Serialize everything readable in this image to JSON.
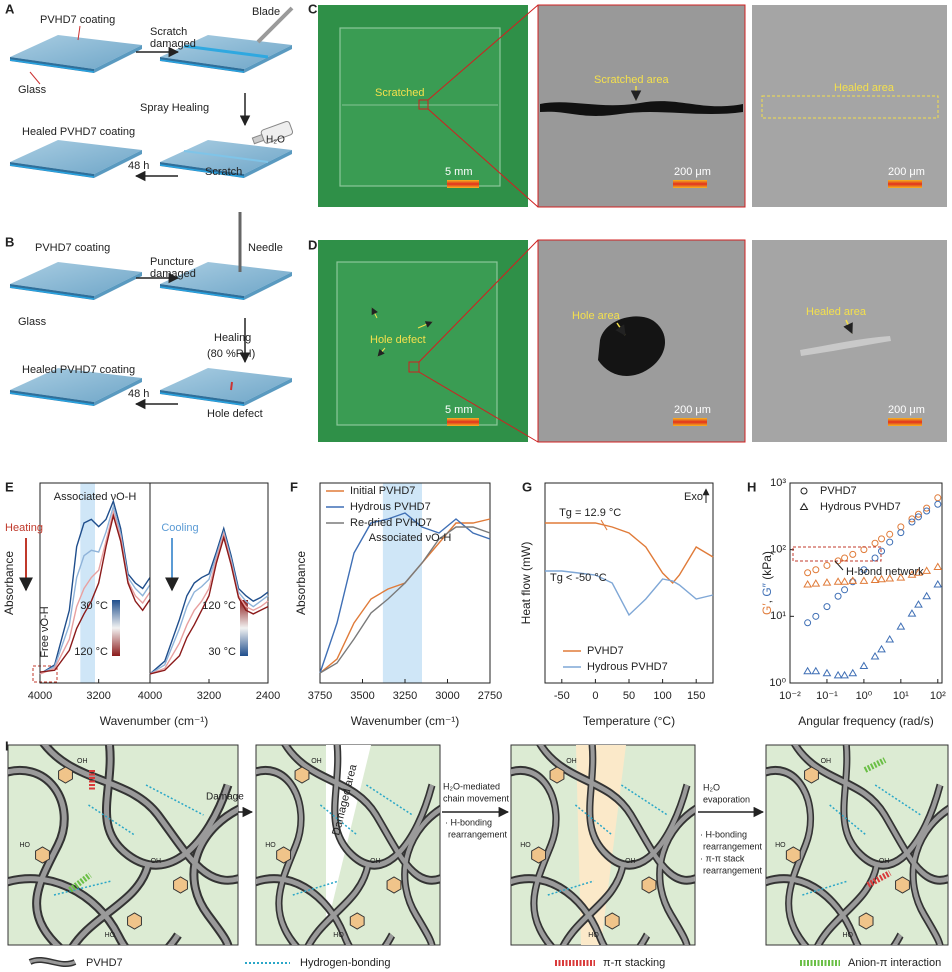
{
  "panel_a": {
    "label": "A",
    "coating": "PVHD7 coating",
    "glass": "Glass",
    "step1": [
      "Scratch",
      "damaged"
    ],
    "blade": "Blade",
    "step2": "Spray Healing",
    "water": "H₂O",
    "healed": "Healed PVHD7 coating",
    "time": "48 h",
    "scratch": "Scratch"
  },
  "panel_b": {
    "label": "B",
    "coating": "PVHD7 coating",
    "glass": "Glass",
    "step1": [
      "Puncture",
      "damaged"
    ],
    "needle": "Needle",
    "step2": [
      "Healing",
      "(80 %RH)"
    ],
    "healed": "Healed PVHD7 coating",
    "time": "48 h",
    "defect": "Hole defect"
  },
  "panel_c": {
    "label": "C",
    "photo_label": "Scratched",
    "photo_scale": "5 mm",
    "damaged_label": "Scratched area",
    "damaged_scale": "200 μm",
    "healed_label": "Healed area",
    "healed_scale": "200 μm"
  },
  "panel_d": {
    "label": "D",
    "photo_label": "Hole defect",
    "photo_scale": "5 mm",
    "damaged_label": "Hole area",
    "damaged_scale": "200 μm",
    "healed_label": "Healed area",
    "healed_scale": "200 μm"
  },
  "chart_data": [
    {
      "type": "line",
      "label": "E",
      "x_label": "Wavenumber (cm⁻¹)",
      "y_label": "Absorbance",
      "annotations": {
        "associated": "Associated νO-H",
        "heating": "Heating",
        "cooling": "Cooling",
        "free": "Free νO-H"
      },
      "subplots": [
        {
          "xlim": [
            4000,
            2500
          ],
          "xticks": [
            4000,
            3200
          ],
          "ylim": [
            0,
            1.1
          ],
          "highlight": [
            3450,
            3250
          ],
          "colorbar": [
            "30 °C",
            "120 °C"
          ],
          "x": [
            4000,
            3800,
            3600,
            3500,
            3400,
            3300,
            3200,
            3100,
            3000,
            2900,
            2800,
            2700,
            2600,
            2500
          ],
          "series": [
            {
              "color": "#1f4e8c",
              "values": [
                0.05,
                0.1,
                0.4,
                0.75,
                0.88,
                0.9,
                0.86,
                0.9,
                1.0,
                0.85,
                0.6,
                0.55,
                0.52,
                0.58
              ]
            },
            {
              "color": "#8fb3d9",
              "values": [
                0.05,
                0.09,
                0.32,
                0.58,
                0.7,
                0.73,
                0.72,
                0.83,
                0.97,
                0.82,
                0.58,
                0.52,
                0.48,
                0.54
              ]
            },
            {
              "color": "#e8a0a0",
              "values": [
                0.05,
                0.08,
                0.24,
                0.42,
                0.52,
                0.58,
                0.62,
                0.78,
                0.94,
                0.8,
                0.56,
                0.48,
                0.44,
                0.5
              ]
            },
            {
              "color": "#8b1a1a",
              "values": [
                0.06,
                0.07,
                0.18,
                0.3,
                0.38,
                0.45,
                0.55,
                0.75,
                0.92,
                0.78,
                0.55,
                0.45,
                0.4,
                0.46
              ]
            }
          ]
        },
        {
          "xlim": [
            4000,
            2400
          ],
          "xticks": [
            4000,
            3200,
            2400
          ],
          "ylim": [
            0,
            1.1
          ],
          "colorbar": [
            "120 °C",
            "30 °C"
          ],
          "x": [
            4000,
            3800,
            3600,
            3500,
            3400,
            3300,
            3200,
            3100,
            3000,
            2900,
            2800,
            2700,
            2600,
            2500,
            2400
          ],
          "series": [
            {
              "color": "#1f4e8c",
              "values": [
                0.05,
                0.12,
                0.35,
                0.48,
                0.55,
                0.58,
                0.6,
                0.72,
                0.85,
                0.7,
                0.52,
                0.48,
                0.45,
                0.47,
                0.5
              ]
            },
            {
              "color": "#8fb3d9",
              "values": [
                0.05,
                0.1,
                0.3,
                0.42,
                0.5,
                0.53,
                0.57,
                0.7,
                0.83,
                0.68,
                0.5,
                0.45,
                0.42,
                0.45,
                0.48
              ]
            },
            {
              "color": "#e8a0a0",
              "values": [
                0.05,
                0.08,
                0.22,
                0.32,
                0.4,
                0.45,
                0.52,
                0.68,
                0.82,
                0.66,
                0.48,
                0.42,
                0.4,
                0.42,
                0.45
              ]
            },
            {
              "color": "#8b1a1a",
              "values": [
                0.05,
                0.07,
                0.15,
                0.25,
                0.32,
                0.4,
                0.48,
                0.66,
                0.8,
                0.65,
                0.47,
                0.4,
                0.38,
                0.4,
                0.42
              ]
            }
          ]
        }
      ]
    },
    {
      "type": "line",
      "label": "F",
      "x_label": "Wavenumber (cm⁻¹)",
      "y_label": "Absorbance",
      "annotation": "Associated νO-H",
      "xlim": [
        3750,
        2750
      ],
      "xticks": [
        3750,
        3500,
        3250,
        3000,
        2750
      ],
      "ylim": [
        0,
        1
      ],
      "highlight": [
        3380,
        3150
      ],
      "legend": "upper left",
      "x": [
        3750,
        3650,
        3550,
        3450,
        3350,
        3250,
        3150,
        3050,
        2950,
        2850,
        2750
      ],
      "series": [
        {
          "name": "Initial PVHD7",
          "color": "#e07b39",
          "values": [
            0.05,
            0.12,
            0.3,
            0.42,
            0.47,
            0.5,
            0.6,
            0.7,
            0.8,
            0.8,
            0.82
          ]
        },
        {
          "name": "Hydrous PVHD7",
          "color": "#3f6fb5",
          "values": [
            0.05,
            0.3,
            0.65,
            0.8,
            0.82,
            0.85,
            0.78,
            0.75,
            0.82,
            0.75,
            0.72
          ]
        },
        {
          "name": "Re-dried PVHD7",
          "color": "#7a7a7a",
          "values": [
            0.05,
            0.1,
            0.22,
            0.35,
            0.42,
            0.5,
            0.6,
            0.72,
            0.78,
            0.78,
            0.75
          ]
        }
      ]
    },
    {
      "type": "line",
      "label": "G",
      "x_label": "Temperature (°C)",
      "y_label": "Heat flow (mW)",
      "exo": "Exo",
      "xlim": [
        -75,
        175
      ],
      "xticks": [
        -50,
        0,
        50,
        100,
        150
      ],
      "ylim": [
        0,
        1
      ],
      "legend": "lower left",
      "annotations": [
        {
          "text": "Tg = 12.9 °C",
          "x": 12.9
        },
        {
          "text": "Tg < -50 °C"
        }
      ],
      "x": [
        -75,
        -50,
        -25,
        0,
        25,
        50,
        75,
        100,
        115,
        125,
        150,
        175
      ],
      "series": [
        {
          "name": "PVHD7",
          "color": "#e07b39",
          "values": [
            0.8,
            0.8,
            0.8,
            0.8,
            0.78,
            0.75,
            0.68,
            0.55,
            0.5,
            0.54,
            0.68,
            0.63
          ]
        },
        {
          "name": "Hydrous PVHD7",
          "color": "#7fa7d6",
          "values": [
            0.56,
            0.56,
            0.55,
            0.54,
            0.5,
            0.34,
            0.42,
            0.52,
            0.51,
            0.49,
            0.42,
            0.44
          ]
        }
      ]
    },
    {
      "type": "scatter",
      "label": "H",
      "log_x": true,
      "log_y": true,
      "x_label": "Angular frequency (rad/s)",
      "y_label": [
        {
          "text": "G′",
          "color": "#e07b39"
        },
        {
          "text": ", ",
          "color": "#222222"
        },
        {
          "text": "G″",
          "color": "#3f6fb5"
        },
        {
          "text": " (kPa)",
          "color": "#222222"
        }
      ],
      "annotation": "H-bond network",
      "legend": "upper left",
      "xlim": [
        0.01,
        130
      ],
      "ylim": [
        1,
        1000
      ],
      "xticks": [
        {
          "value": 0.01,
          "label": "10⁻²"
        },
        {
          "value": 0.1,
          "label": "10⁻¹"
        },
        {
          "value": 1,
          "label": "10⁰"
        },
        {
          "value": 10,
          "label": "10¹"
        },
        {
          "value": 100,
          "label": "10²"
        }
      ],
      "yticks": [
        {
          "value": 1,
          "label": "10⁰"
        },
        {
          "value": 10,
          "label": "10¹"
        },
        {
          "value": 100,
          "label": "10²"
        },
        {
          "value": 1000,
          "label": "10³"
        }
      ],
      "x": [
        0.03,
        0.05,
        0.1,
        0.2,
        0.3,
        0.5,
        1,
        2,
        3,
        5,
        10,
        20,
        30,
        50,
        100
      ],
      "series": [
        {
          "name": "PVHD7",
          "marker": "circle",
          "curves": [
            {
              "color": "#e07b39",
              "values": [
                45,
                50,
                58,
                68,
                75,
                85,
                100,
                125,
                145,
                170,
                220,
                290,
                340,
                420,
                600
              ]
            },
            {
              "color": "#3f6fb5",
              "values": [
                8,
                10,
                14,
                20,
                25,
                33,
                50,
                75,
                95,
                130,
                180,
                260,
                310,
                380,
                480
              ]
            }
          ]
        },
        {
          "name": "Hydrous PVHD7",
          "marker": "triangle",
          "curves": [
            {
              "color": "#e07b39",
              "values": [
                30,
                31,
                32,
                33,
                33,
                34,
                34,
                35,
                36,
                37,
                38,
                42,
                45,
                48,
                55
              ]
            },
            {
              "color": "#3f6fb5",
              "values": [
                1.5,
                1.5,
                1.4,
                1.3,
                1.3,
                1.4,
                1.8,
                2.5,
                3.2,
                4.5,
                7,
                11,
                15,
                20,
                30
              ]
            }
          ]
        }
      ]
    }
  ],
  "panel_i": {
    "label": "I",
    "step1": "Damage",
    "step2": [
      "H₂O-mediated",
      "chain movement"
    ],
    "step2_notes": [
      "· H-bonding",
      "rearrangement"
    ],
    "step3": [
      "H₂O",
      "evaporation"
    ],
    "step3_notes": [
      "· H-bonding",
      "rearrangement",
      "· π-π stack",
      "rearrangement"
    ],
    "damaged": "Damaged area",
    "chem": {
      "oh": "OH",
      "ho": "HO"
    },
    "legend": [
      "PVHD7",
      "Hydrogen-bonding",
      "π-π stacking",
      "Anion-π interaction"
    ]
  }
}
